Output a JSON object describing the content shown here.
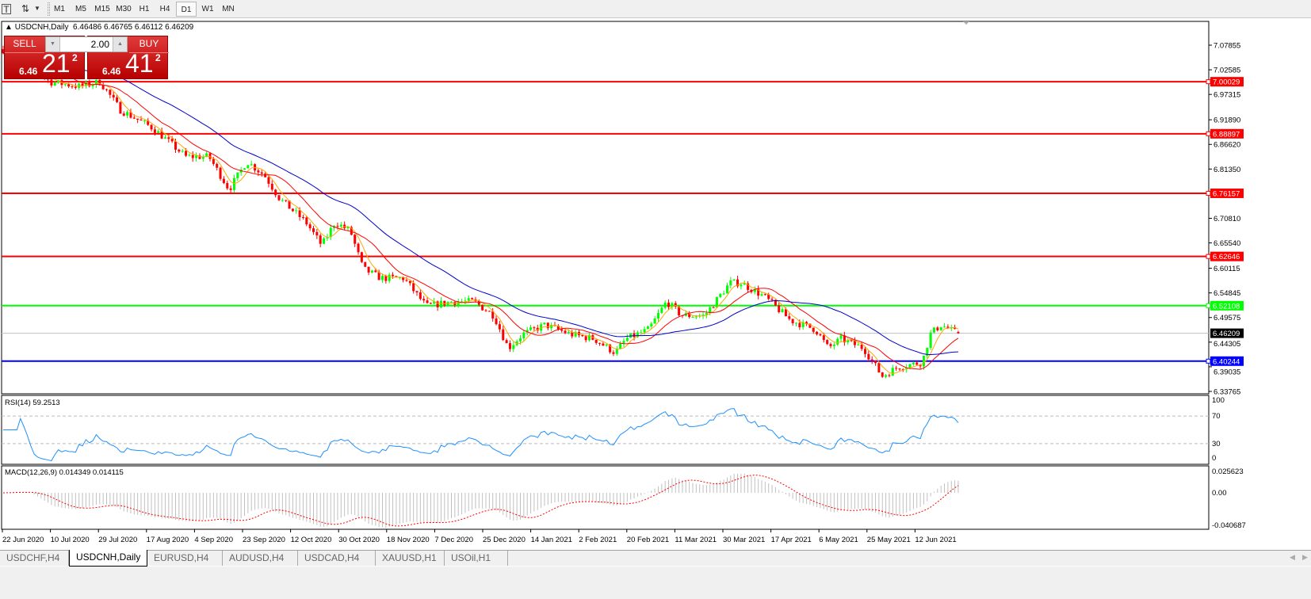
{
  "toolbar": {
    "text_tool_icon": "text-tool-icon",
    "objects_icon": "arrows-icon",
    "timeframes": [
      "M1",
      "M5",
      "M15",
      "M30",
      "H1",
      "H4",
      "D1",
      "W1",
      "MN"
    ],
    "active_timeframe": "D1"
  },
  "chart": {
    "title": "USDCNH,Daily",
    "ohlc": "6.46486 6.46765 6.46112 6.46209",
    "trade_panel": {
      "sell_label": "SELL",
      "buy_label": "BUY",
      "lot": "2.00",
      "sell_small": "6.46",
      "sell_big": "21",
      "sell_sup": "2",
      "buy_small": "6.46",
      "buy_big": "41",
      "buy_sup": "2"
    },
    "colors": {
      "bull": "#00ff00",
      "bear": "#ff0000",
      "ma_fast": "#ffa500",
      "ma_mid": "#ff0000",
      "ma_slow": "#0000cc",
      "rsi": "#1e90ff",
      "macd_hist": "#c0c0c0",
      "macd_signal": "#ff0000"
    }
  },
  "chart_data": {
    "type": "candlestick",
    "symbol": "USDCNH",
    "timeframe": "Daily",
    "price_ticks": [
      "7.07855",
      "7.02585",
      "6.97315",
      "6.91890",
      "6.86620",
      "6.81350",
      "6.70810",
      "6.65540",
      "6.60115",
      "6.54845",
      "6.49575",
      "6.44305",
      "6.39035",
      "6.33765"
    ],
    "ylim": [
      6.33765,
      7.07855
    ],
    "hlines": [
      {
        "price": "7.00029",
        "color": "#ff0000"
      },
      {
        "price": "6.88897",
        "color": "#ff0000"
      },
      {
        "price": "6.76157",
        "color": "#ff0000"
      },
      {
        "price": "6.62646",
        "color": "#ff0000"
      },
      {
        "price": "6.52108",
        "color": "#00ff00"
      },
      {
        "price": "6.40244",
        "color": "#0000ff"
      }
    ],
    "current_price": "6.46209",
    "date_ticks": [
      "22 Jun 2020",
      "10 Jul 2020",
      "29 Jul 2020",
      "17 Aug 2020",
      "4 Sep 2020",
      "23 Sep 2020",
      "12 Oct 2020",
      "30 Oct 2020",
      "18 Nov 2020",
      "7 Dec 2020",
      "25 Dec 2020",
      "14 Jan 2021",
      "2 Feb 2021",
      "20 Feb 2021",
      "11 Mar 2021",
      "30 Mar 2021",
      "17 Apr 2021",
      "6 May 2021",
      "25 May 2021",
      "12 Jun 2021"
    ],
    "approx_closes": [
      [
        "2020-06-22",
        7.07
      ],
      [
        "2020-07-01",
        7.06
      ],
      [
        "2020-07-10",
        7.0
      ],
      [
        "2020-07-22",
        6.99
      ],
      [
        "2020-07-30",
        7.0
      ],
      [
        "2020-08-07",
        6.94
      ],
      [
        "2020-08-20",
        6.9
      ],
      [
        "2020-09-01",
        6.84
      ],
      [
        "2020-09-10",
        6.84
      ],
      [
        "2020-09-18",
        6.77
      ],
      [
        "2020-09-25",
        6.83
      ],
      [
        "2020-10-02",
        6.8
      ],
      [
        "2020-10-08",
        6.75
      ],
      [
        "2020-10-18",
        6.7
      ],
      [
        "2020-10-24",
        6.65
      ],
      [
        "2020-10-29",
        6.7
      ],
      [
        "2020-11-04",
        6.68
      ],
      [
        "2020-11-09",
        6.6
      ],
      [
        "2020-11-16",
        6.58
      ],
      [
        "2020-11-25",
        6.58
      ],
      [
        "2020-12-04",
        6.52
      ],
      [
        "2020-12-14",
        6.53
      ],
      [
        "2020-12-22",
        6.53
      ],
      [
        "2020-12-30",
        6.5
      ],
      [
        "2021-01-05",
        6.43
      ],
      [
        "2021-01-11",
        6.46
      ],
      [
        "2021-01-20",
        6.48
      ],
      [
        "2021-01-30",
        6.46
      ],
      [
        "2021-02-08",
        6.45
      ],
      [
        "2021-02-16",
        6.42
      ],
      [
        "2021-02-20",
        6.45
      ],
      [
        "2021-03-01",
        6.47
      ],
      [
        "2021-03-08",
        6.53
      ],
      [
        "2021-03-14",
        6.5
      ],
      [
        "2021-03-23",
        6.5
      ],
      [
        "2021-04-02",
        6.57
      ],
      [
        "2021-04-06",
        6.57
      ],
      [
        "2021-04-15",
        6.54
      ],
      [
        "2021-04-25",
        6.49
      ],
      [
        "2021-05-05",
        6.47
      ],
      [
        "2021-05-10",
        6.43
      ],
      [
        "2021-05-15",
        6.45
      ],
      [
        "2021-05-24",
        6.43
      ],
      [
        "2021-05-31",
        6.37
      ],
      [
        "2021-06-06",
        6.39
      ],
      [
        "2021-06-15",
        6.4
      ],
      [
        "2021-06-18",
        6.46
      ],
      [
        "2021-06-22",
        6.48
      ],
      [
        "2021-06-28",
        6.46209
      ]
    ],
    "rsi": {
      "label": "RSI(14) 59.2513",
      "levels": [
        "70",
        "30"
      ],
      "scale": [
        "100",
        "70",
        "30",
        "0"
      ]
    },
    "macd": {
      "label": "MACD(12,26,9) 0.014349 0.014115",
      "scale": [
        "0.025623",
        "0.00",
        "-0.040687"
      ]
    }
  },
  "tabs": [
    "USDCHF,H4",
    "USDCNH,Daily",
    "EURUSD,H4",
    "AUDUSD,H4",
    "USDCAD,H4",
    "XAUUSD,H1",
    "USOil,H1"
  ],
  "active_tab": "USDCNH,Daily"
}
